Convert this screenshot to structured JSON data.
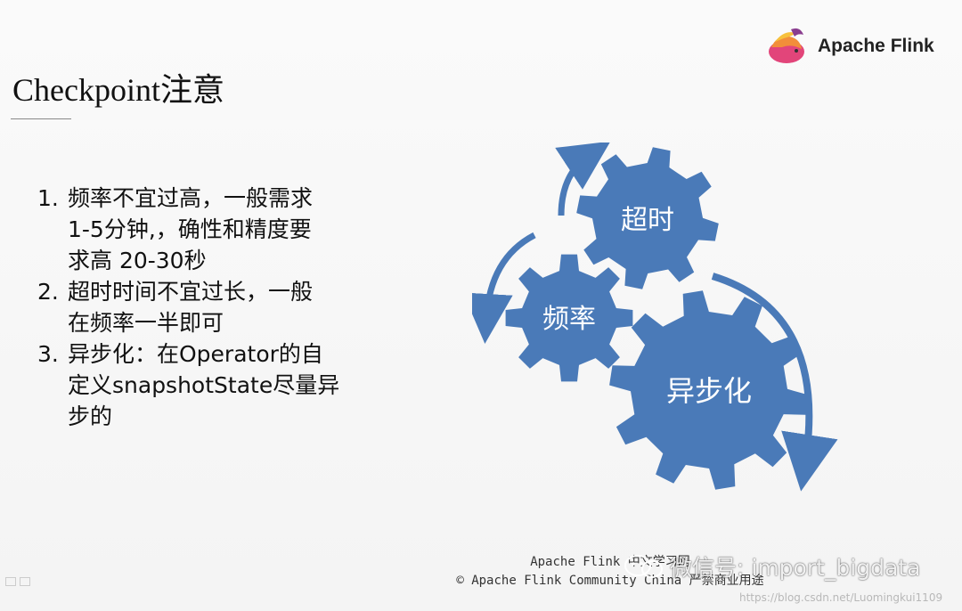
{
  "logo": {
    "text": "Apache Flink"
  },
  "slide": {
    "title": "Checkpoint注意",
    "points": [
      {
        "num": "1.",
        "text": "频率不宜过高，一般需求\n1-5分钟,，确性和精度要\n求高 20-30秒"
      },
      {
        "num": "2.",
        "text": "超时时间不宜过长，一般\n在频率一半即可"
      },
      {
        "num": "3.",
        "text": "异步化：在Operator的自\n定义snapshotState尽量异\n步的"
      }
    ],
    "gears": {
      "top": "超时",
      "left": "频率",
      "big": "异步化"
    },
    "colors": {
      "gear": "#4a7ab8",
      "arrow": "#4a7ab8"
    }
  },
  "footer": {
    "line1": "Apache Flink 中文学习网 ",
    "line2": "© Apache Flink Community China 严禁商业用途"
  },
  "watermark": {
    "text": "微信号: import_bigdata",
    "url": "https://blog.csdn.net/Luomingkui1109"
  }
}
